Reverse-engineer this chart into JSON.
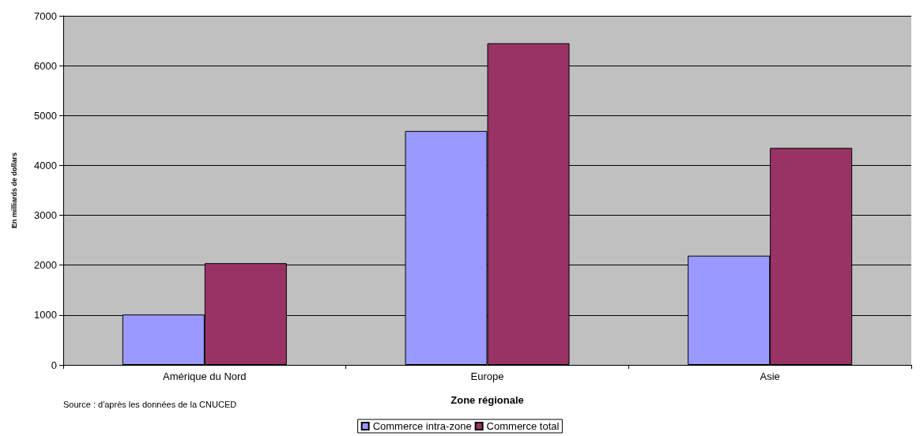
{
  "chart_data": {
    "type": "bar",
    "xlabel": "Zone régionale",
    "ylabel": "En milliards de dollars",
    "categories": [
      "Amérique du Nord",
      "Europe",
      "Asie"
    ],
    "series": [
      {
        "name": "Commerce intra-zone",
        "color": "#9999ff",
        "values": [
          1010,
          4690,
          2190
        ]
      },
      {
        "name": "Commerce total",
        "color": "#993366",
        "values": [
          2040,
          6450,
          4350
        ]
      }
    ],
    "ylim": [
      0,
      7000
    ],
    "yticks": [
      0,
      1000,
      2000,
      3000,
      4000,
      5000,
      6000,
      7000
    ],
    "grid": "y",
    "legend": "bottom",
    "annotations": [
      "Source : d'après les données de la CNUCED"
    ]
  }
}
